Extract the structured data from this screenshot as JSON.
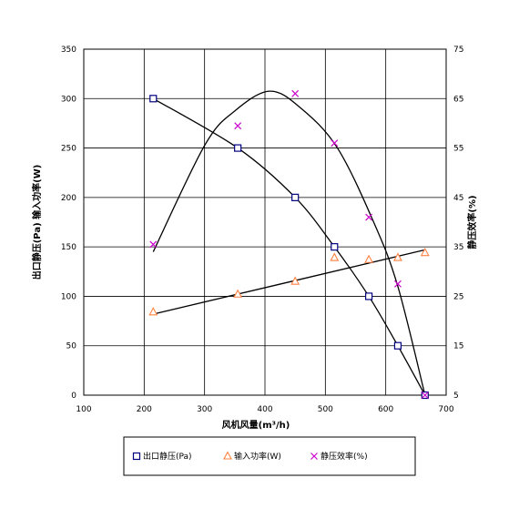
{
  "chart_data": {
    "type": "scatter",
    "xlabel": "风机风量(m³/h)",
    "ylabel_left": "出口静压(Pa) 输入功率(W)",
    "ylabel_right": "静压效率(%)",
    "xlim": [
      100,
      700
    ],
    "ylim_left": [
      0,
      350
    ],
    "ylim_right": [
      5,
      75
    ],
    "x_ticks": [
      100,
      200,
      300,
      400,
      500,
      600,
      700
    ],
    "y_left_ticks": [
      0,
      50,
      100,
      150,
      200,
      250,
      300,
      350
    ],
    "y_right_ticks": [
      5,
      15,
      25,
      35,
      45,
      55,
      65,
      75
    ],
    "grid": true,
    "legend_placement": "bottom",
    "series": [
      {
        "name": "出口静压(Pa)",
        "axis": "left",
        "marker": "square",
        "color": "#000080",
        "x": [
          215,
          355,
          450,
          515,
          572,
          620,
          665
        ],
        "y": [
          300,
          250,
          200,
          150,
          100,
          50,
          0
        ]
      },
      {
        "name": "输入功率(W)",
        "axis": "left",
        "marker": "triangle",
        "color": "#FF8040",
        "x": [
          215,
          355,
          450,
          515,
          572,
          620,
          665
        ],
        "y": [
          84,
          102,
          115,
          139,
          137,
          139,
          144
        ]
      },
      {
        "name": "静压效率(%)",
        "axis": "right",
        "marker": "x",
        "color": "#CC00CC",
        "x": [
          215,
          355,
          450,
          515,
          572,
          620,
          665
        ],
        "y": [
          35.5,
          59.5,
          66,
          56,
          41,
          27.5,
          5
        ]
      }
    ],
    "fit_curves": [
      {
        "series": "出口静压(Pa)",
        "axis": "left",
        "x": [
          215,
          355,
          450,
          515,
          572,
          620,
          665
        ],
        "y": [
          300,
          250,
          200,
          150,
          100,
          50,
          0
        ]
      },
      {
        "series": "输入功率(W)",
        "axis": "left",
        "x": [
          215,
          665
        ],
        "y": [
          82,
          147
        ]
      },
      {
        "series": "静压效率(%)",
        "axis": "right",
        "x": [
          215,
          300,
          350,
          408,
          460,
          520,
          580,
          620,
          665
        ],
        "y": [
          34,
          55.5,
          62.5,
          66.5,
          63,
          55,
          40,
          27,
          5
        ]
      }
    ]
  },
  "colors": {
    "line": "#000000",
    "grid": "#000000",
    "square_marker": "#000080",
    "triangle_marker": "#FF8040",
    "x_marker": "#CC00CC"
  }
}
